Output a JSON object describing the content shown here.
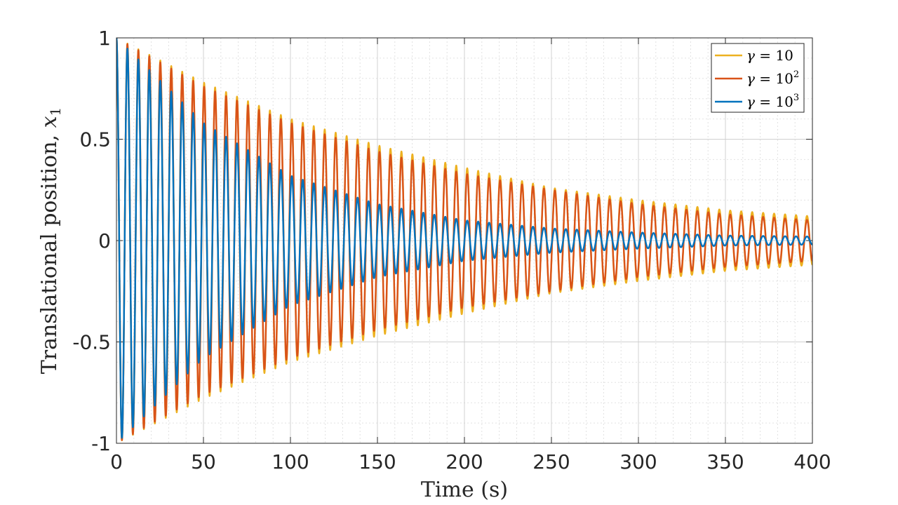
{
  "chart_data": {
    "type": "line",
    "xlabel": "Time (s)",
    "ylabel": "Translational position, x1",
    "ylabel_parts": {
      "text": "Translational position, ",
      "var": "x",
      "sub": "1"
    },
    "xlim": [
      0,
      400
    ],
    "ylim": [
      -1,
      1
    ],
    "xticks": [
      0,
      50,
      100,
      150,
      200,
      250,
      300,
      350,
      400
    ],
    "xtick_labels": [
      "0",
      "50",
      "100",
      "150",
      "200",
      "250",
      "300",
      "350",
      "400"
    ],
    "yticks": [
      -1,
      -0.5,
      0,
      0.5,
      1
    ],
    "ytick_labels": [
      "-1",
      "-0.5",
      "0",
      "0.5",
      "1"
    ],
    "grid": true,
    "minor_grid": true,
    "legend_position": "top-right",
    "oscillation_period_s": 6.3,
    "series": [
      {
        "name": "γ = 10",
        "legend": {
          "sym": "γ",
          "base": "10",
          "exp": ""
        },
        "color": "#EDB120",
        "envelope": {
          "t": [
            0,
            50,
            100,
            150,
            200,
            250,
            300,
            350,
            400
          ],
          "amp": [
            1.0,
            0.78,
            0.6,
            0.47,
            0.36,
            0.26,
            0.2,
            0.15,
            0.12
          ]
        }
      },
      {
        "name": "γ = 10²",
        "legend": {
          "sym": "γ",
          "base": "10",
          "exp": "2"
        },
        "color": "#D95319",
        "envelope": {
          "t": [
            0,
            50,
            100,
            150,
            200,
            250,
            300,
            350,
            400
          ],
          "amp": [
            1.0,
            0.76,
            0.58,
            0.44,
            0.33,
            0.25,
            0.18,
            0.13,
            0.1
          ]
        }
      },
      {
        "name": "γ = 10³",
        "legend": {
          "sym": "γ",
          "base": "10",
          "exp": "3"
        },
        "color": "#0072BD",
        "envelope": {
          "t": [
            0,
            50,
            100,
            150,
            200,
            250,
            300,
            350,
            400
          ],
          "amp": [
            1.0,
            0.58,
            0.32,
            0.18,
            0.1,
            0.06,
            0.04,
            0.025,
            0.02
          ]
        }
      }
    ]
  }
}
